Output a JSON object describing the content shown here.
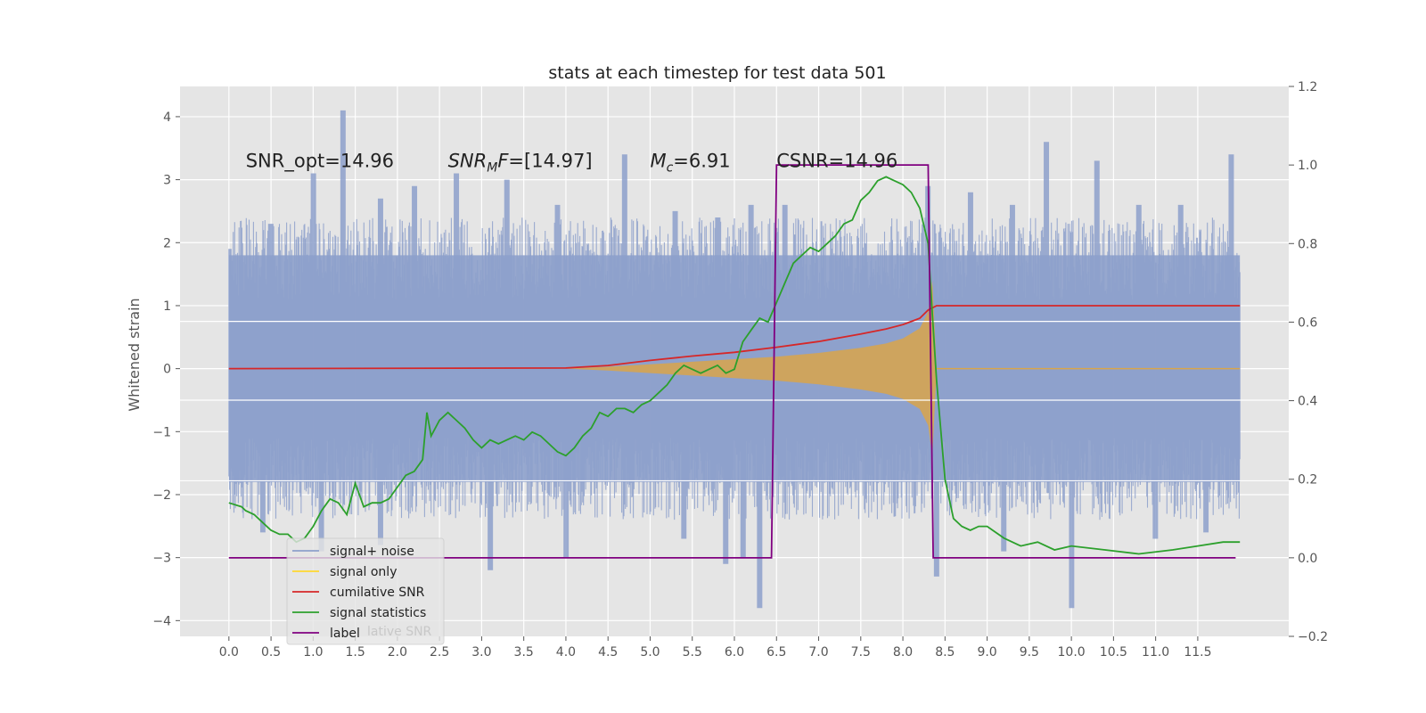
{
  "chart_data": {
    "type": "line",
    "title": "stats at each timestep for test data 501",
    "xlabel": "",
    "ylabel": "Whitened strain",
    "y2label": "",
    "xlim": [
      -0.58,
      12.58
    ],
    "ylim": [
      -4.25,
      4.48
    ],
    "y2lim": [
      -0.2,
      1.2
    ],
    "xticks": [
      "0.0",
      "0.5",
      "1.0",
      "1.5",
      "2.0",
      "2.5",
      "3.0",
      "3.5",
      "4.0",
      "4.5",
      "5.0",
      "5.5",
      "6.0",
      "6.5",
      "7.0",
      "7.5",
      "8.0",
      "8.5",
      "9.0",
      "9.5",
      "10.0",
      "10.5",
      "11.0",
      "11.5"
    ],
    "yticks": [
      "4",
      "3",
      "2",
      "1",
      "0",
      "−1",
      "−2",
      "−3",
      "−4"
    ],
    "y2ticks": [
      "1.2",
      "1.0",
      "0.8",
      "0.6",
      "0.4",
      "0.2",
      "0.0",
      "−0.2"
    ],
    "grid": true,
    "background": "#e5e5e5",
    "legend_position": "lower-left",
    "annotations": [
      {
        "text": "SNR_opt=14.96",
        "x": 0.2,
        "y": 3.3
      },
      {
        "text": "F=[14.97]",
        "prefix": "SNR",
        "sub": "M",
        "x": 2.6,
        "y": 3.3
      },
      {
        "text": "=6.91",
        "prefix": "M",
        "sub": "c",
        "x": 5.0,
        "y": 3.3
      },
      {
        "text": "CSNR=14.96",
        "x": 6.5,
        "y": 3.3
      }
    ],
    "legend": [
      {
        "label": "signal+ noise",
        "color": "#8da0cb"
      },
      {
        "label": "signal only",
        "color": "#ffd92f"
      },
      {
        "label": "cumilative SNR",
        "color": "#d62728"
      },
      {
        "label": "signal statistics",
        "color": "#2ca02c"
      },
      {
        "label": "label",
        "color": "#800080"
      }
    ],
    "legend_ghost_text": "lative SNR",
    "series": [
      {
        "name": "signal+ noise",
        "axis": "left",
        "color": "#8da0cb",
        "x_range": [
          0.0,
          12.0
        ],
        "band_low": -1.8,
        "band_high": 1.8,
        "peaks": [
          [
            0.0,
            1.9
          ],
          [
            0.5,
            2.3
          ],
          [
            1.0,
            3.1
          ],
          [
            1.35,
            4.1
          ],
          [
            1.8,
            2.7
          ],
          [
            2.2,
            2.9
          ],
          [
            2.7,
            3.1
          ],
          [
            3.3,
            3.0
          ],
          [
            3.9,
            2.6
          ],
          [
            4.7,
            3.4
          ],
          [
            5.3,
            2.5
          ],
          [
            5.8,
            2.4
          ],
          [
            6.2,
            2.6
          ],
          [
            6.6,
            2.6
          ],
          [
            8.3,
            2.9
          ],
          [
            8.8,
            2.8
          ],
          [
            9.3,
            2.6
          ],
          [
            9.7,
            3.6
          ],
          [
            10.3,
            3.3
          ],
          [
            10.8,
            2.6
          ],
          [
            11.3,
            2.6
          ],
          [
            11.9,
            3.4
          ]
        ],
        "troughs": [
          [
            0.4,
            -2.6
          ],
          [
            1.1,
            -2.9
          ],
          [
            1.8,
            -2.8
          ],
          [
            3.1,
            -3.2
          ],
          [
            4.0,
            -3.0
          ],
          [
            5.4,
            -2.7
          ],
          [
            5.9,
            -3.1
          ],
          [
            6.1,
            -3.0
          ],
          [
            6.3,
            -3.8
          ],
          [
            8.4,
            -3.3
          ],
          [
            9.2,
            -2.9
          ],
          [
            10.0,
            -3.8
          ],
          [
            11.0,
            -2.7
          ],
          [
            11.6,
            -2.6
          ]
        ]
      },
      {
        "name": "signal only",
        "axis": "left",
        "color": "#d9a54a",
        "x": [
          4.0,
          4.5,
          5.0,
          5.5,
          6.0,
          6.5,
          7.0,
          7.5,
          7.8,
          8.0,
          8.2,
          8.3,
          8.35,
          8.4
        ],
        "amplitude": [
          0.0,
          0.03,
          0.07,
          0.11,
          0.15,
          0.19,
          0.25,
          0.33,
          0.4,
          0.48,
          0.64,
          0.9,
          1.4,
          0.0
        ]
      },
      {
        "name": "cumilative SNR",
        "axis": "left",
        "color": "#d62728",
        "x": [
          0.0,
          4.0,
          4.5,
          5.0,
          5.5,
          6.0,
          6.5,
          7.0,
          7.5,
          7.8,
          8.0,
          8.2,
          8.3,
          8.4,
          12.0
        ],
        "y": [
          0.0,
          0.01,
          0.05,
          0.13,
          0.2,
          0.26,
          0.34,
          0.43,
          0.55,
          0.63,
          0.7,
          0.8,
          0.93,
          1.0,
          1.0
        ]
      },
      {
        "name": "signal statistics",
        "axis": "right",
        "color": "#2ca02c",
        "x": [
          0.0,
          0.15,
          0.2,
          0.3,
          0.4,
          0.5,
          0.6,
          0.7,
          0.8,
          0.9,
          1.0,
          1.1,
          1.2,
          1.3,
          1.4,
          1.5,
          1.6,
          1.7,
          1.8,
          1.9,
          2.0,
          2.1,
          2.2,
          2.3,
          2.35,
          2.4,
          2.5,
          2.6,
          2.7,
          2.8,
          2.9,
          3.0,
          3.1,
          3.2,
          3.3,
          3.4,
          3.5,
          3.6,
          3.7,
          3.8,
          3.9,
          4.0,
          4.1,
          4.2,
          4.3,
          4.4,
          4.5,
          4.6,
          4.7,
          4.8,
          4.9,
          5.0,
          5.1,
          5.2,
          5.3,
          5.4,
          5.5,
          5.6,
          5.7,
          5.8,
          5.9,
          6.0,
          6.1,
          6.2,
          6.3,
          6.4,
          6.5,
          6.6,
          6.7,
          6.8,
          6.9,
          7.0,
          7.1,
          7.2,
          7.3,
          7.4,
          7.5,
          7.6,
          7.7,
          7.8,
          7.9,
          8.0,
          8.1,
          8.2,
          8.3,
          8.35,
          8.4,
          8.5,
          8.6,
          8.7,
          8.8,
          8.9,
          9.0,
          9.2,
          9.4,
          9.6,
          9.8,
          10.0,
          10.4,
          10.8,
          11.2,
          11.5,
          11.8,
          12.0
        ],
        "y": [
          0.14,
          0.13,
          0.12,
          0.11,
          0.09,
          0.07,
          0.06,
          0.06,
          0.04,
          0.05,
          0.08,
          0.12,
          0.15,
          0.14,
          0.11,
          0.19,
          0.13,
          0.14,
          0.14,
          0.15,
          0.18,
          0.21,
          0.22,
          0.25,
          0.37,
          0.31,
          0.35,
          0.37,
          0.35,
          0.33,
          0.3,
          0.28,
          0.3,
          0.29,
          0.3,
          0.31,
          0.3,
          0.32,
          0.31,
          0.29,
          0.27,
          0.26,
          0.28,
          0.31,
          0.33,
          0.37,
          0.36,
          0.38,
          0.38,
          0.37,
          0.39,
          0.4,
          0.42,
          0.44,
          0.47,
          0.49,
          0.48,
          0.47,
          0.48,
          0.49,
          0.47,
          0.48,
          0.55,
          0.58,
          0.61,
          0.6,
          0.65,
          0.7,
          0.75,
          0.77,
          0.79,
          0.78,
          0.8,
          0.82,
          0.85,
          0.86,
          0.91,
          0.93,
          0.96,
          0.97,
          0.96,
          0.95,
          0.93,
          0.89,
          0.8,
          0.62,
          0.45,
          0.2,
          0.1,
          0.08,
          0.07,
          0.08,
          0.08,
          0.05,
          0.03,
          0.04,
          0.02,
          0.03,
          0.02,
          0.01,
          0.02,
          0.03,
          0.04,
          0.04
        ]
      },
      {
        "name": "label",
        "axis": "right",
        "color": "#800080",
        "x": [
          0.0,
          6.44,
          6.5,
          8.3,
          8.36,
          11.95
        ],
        "y": [
          0.0,
          0.0,
          1.0,
          1.0,
          0.0,
          0.0
        ]
      }
    ],
    "ref_lines_left": [
      0.75,
      -0.5,
      -1.78
    ]
  }
}
